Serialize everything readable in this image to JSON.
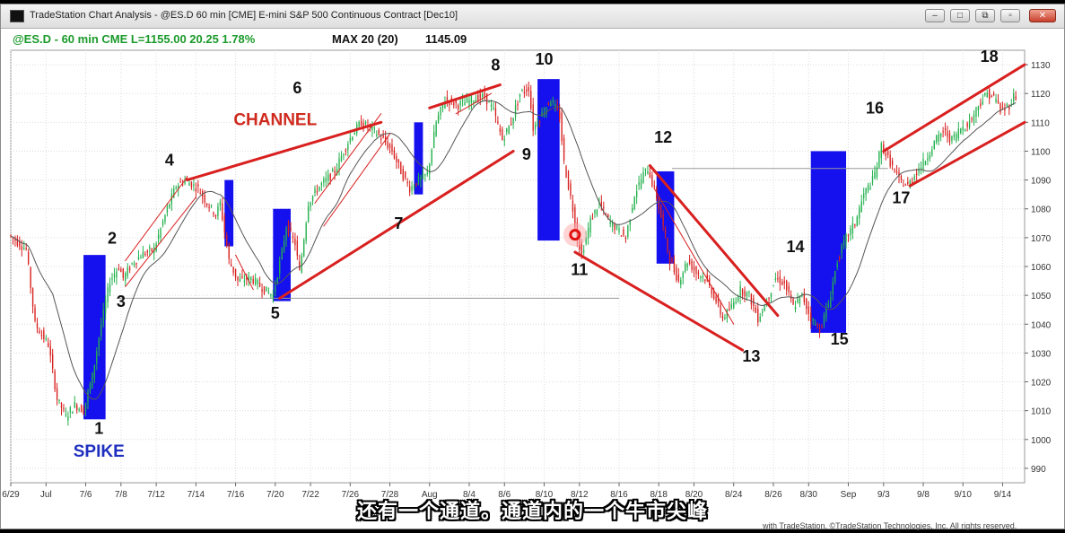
{
  "window": {
    "title": "TradeStation Chart Analysis - @ES.D 60 min [CME] E-mini S&P 500 Continuous Contract [Dec10]"
  },
  "chart_data": {
    "type": "candlestick",
    "header": {
      "symbol_info": "@ES.D - 60 min  CME  L=1155.00  20.25  1.78%",
      "indicator": "MAX 20 (20)",
      "indicator_value": "1145.09"
    },
    "y_axis": {
      "min": 985,
      "max": 1135,
      "ticks": [
        990,
        1000,
        1010,
        1020,
        1030,
        1040,
        1050,
        1060,
        1070,
        1080,
        1090,
        1100,
        1110,
        1120,
        1130
      ]
    },
    "x_axis": {
      "ticks": [
        {
          "label": "6/29",
          "x": 0
        },
        {
          "label": "Jul",
          "x": 8
        },
        {
          "label": "7/6",
          "x": 17
        },
        {
          "label": "7/8",
          "x": 25
        },
        {
          "label": "7/12",
          "x": 33
        },
        {
          "label": "7/14",
          "x": 42
        },
        {
          "label": "7/16",
          "x": 51
        },
        {
          "label": "7/20",
          "x": 60
        },
        {
          "label": "7/22",
          "x": 68
        },
        {
          "label": "7/26",
          "x": 77
        },
        {
          "label": "7/28",
          "x": 86
        },
        {
          "label": "Aug",
          "x": 95
        },
        {
          "label": "8/4",
          "x": 104
        },
        {
          "label": "8/6",
          "x": 112
        },
        {
          "label": "8/10",
          "x": 121
        },
        {
          "label": "8/12",
          "x": 129
        },
        {
          "label": "8/16",
          "x": 138
        },
        {
          "label": "8/18",
          "x": 147
        },
        {
          "label": "8/20",
          "x": 155
        },
        {
          "label": "8/24",
          "x": 164
        },
        {
          "label": "8/26",
          "x": 173
        },
        {
          "label": "8/30",
          "x": 181
        },
        {
          "label": "Sep",
          "x": 190
        },
        {
          "label": "9/3",
          "x": 198
        },
        {
          "label": "9/8",
          "x": 207
        },
        {
          "label": "9/10",
          "x": 216
        },
        {
          "label": "9/14",
          "x": 225
        }
      ]
    },
    "price_path": [
      [
        0,
        1071
      ],
      [
        4,
        1066
      ],
      [
        6,
        1040
      ],
      [
        9,
        1033
      ],
      [
        11,
        1014
      ],
      [
        13,
        1008
      ],
      [
        15,
        1012
      ],
      [
        17,
        1010
      ],
      [
        19,
        1022
      ],
      [
        21,
        1040
      ],
      [
        23,
        1055
      ],
      [
        25,
        1060
      ],
      [
        26,
        1056
      ],
      [
        28,
        1061
      ],
      [
        30,
        1064
      ],
      [
        33,
        1066
      ],
      [
        36,
        1080
      ],
      [
        38,
        1088
      ],
      [
        40,
        1090
      ],
      [
        43,
        1087
      ],
      [
        45,
        1082
      ],
      [
        47,
        1078
      ],
      [
        48,
        1082
      ],
      [
        50,
        1062
      ],
      [
        52,
        1055
      ],
      [
        55,
        1056
      ],
      [
        58,
        1052
      ],
      [
        60,
        1050
      ],
      [
        62,
        1065
      ],
      [
        63,
        1074
      ],
      [
        65,
        1068
      ],
      [
        66,
        1058
      ],
      [
        68,
        1082
      ],
      [
        70,
        1087
      ],
      [
        72,
        1090
      ],
      [
        74,
        1093
      ],
      [
        76,
        1100
      ],
      [
        78,
        1106
      ],
      [
        80,
        1110
      ],
      [
        83,
        1107
      ],
      [
        85,
        1104
      ],
      [
        87,
        1100
      ],
      [
        89,
        1093
      ],
      [
        91,
        1087
      ],
      [
        93,
        1090
      ],
      [
        95,
        1092
      ],
      [
        97,
        1110
      ],
      [
        99,
        1118
      ],
      [
        102,
        1116
      ],
      [
        105,
        1118
      ],
      [
        108,
        1119
      ],
      [
        110,
        1114
      ],
      [
        112,
        1104
      ],
      [
        114,
        1110
      ],
      [
        116,
        1120
      ],
      [
        118,
        1122
      ],
      [
        119,
        1108
      ],
      [
        121,
        1113
      ],
      [
        123,
        1118
      ],
      [
        125,
        1112
      ],
      [
        126,
        1096
      ],
      [
        128,
        1080
      ],
      [
        129,
        1070
      ],
      [
        130,
        1064
      ],
      [
        132,
        1076
      ],
      [
        134,
        1082
      ],
      [
        136,
        1076
      ],
      [
        138,
        1073
      ],
      [
        140,
        1070
      ],
      [
        142,
        1085
      ],
      [
        144,
        1092
      ],
      [
        145,
        1094
      ],
      [
        147,
        1084
      ],
      [
        149,
        1070
      ],
      [
        150,
        1062
      ],
      [
        152,
        1055
      ],
      [
        154,
        1062
      ],
      [
        156,
        1058
      ],
      [
        158,
        1056
      ],
      [
        160,
        1050
      ],
      [
        162,
        1042
      ],
      [
        164,
        1046
      ],
      [
        166,
        1052
      ],
      [
        168,
        1050
      ],
      [
        170,
        1042
      ],
      [
        172,
        1048
      ],
      [
        174,
        1056
      ],
      [
        176,
        1054
      ],
      [
        178,
        1046
      ],
      [
        180,
        1050
      ],
      [
        182,
        1042
      ],
      [
        184,
        1038
      ],
      [
        186,
        1047
      ],
      [
        188,
        1062
      ],
      [
        190,
        1070
      ],
      [
        192,
        1075
      ],
      [
        194,
        1085
      ],
      [
        196,
        1090
      ],
      [
        197,
        1095
      ],
      [
        198,
        1102
      ],
      [
        200,
        1096
      ],
      [
        202,
        1090
      ],
      [
        204,
        1088
      ],
      [
        206,
        1093
      ],
      [
        208,
        1097
      ],
      [
        210,
        1103
      ],
      [
        212,
        1107
      ],
      [
        214,
        1104
      ],
      [
        216,
        1108
      ],
      [
        218,
        1110
      ],
      [
        220,
        1116
      ],
      [
        222,
        1120
      ],
      [
        224,
        1118
      ],
      [
        225,
        1114
      ],
      [
        227,
        1116
      ],
      [
        228,
        1119
      ]
    ],
    "spike_boxes": [
      {
        "x0": 16.5,
        "x1": 21.5,
        "y0": 1007,
        "y1": 1064
      },
      {
        "x0": 48.5,
        "x1": 50.5,
        "y0": 1067,
        "y1": 1090
      },
      {
        "x0": 59.5,
        "x1": 63.5,
        "y0": 1048,
        "y1": 1080
      },
      {
        "x0": 91.5,
        "x1": 93.5,
        "y0": 1085,
        "y1": 1110
      },
      {
        "x0": 119.5,
        "x1": 124.5,
        "y0": 1069,
        "y1": 1125
      },
      {
        "x0": 146.5,
        "x1": 150.5,
        "y0": 1061,
        "y1": 1093
      },
      {
        "x0": 181.5,
        "x1": 189.5,
        "y0": 1037,
        "y1": 1100
      }
    ],
    "trendlines": [
      {
        "x0": 26,
        "y0": 1062,
        "x1": 40,
        "y1": 1091,
        "thin": true
      },
      {
        "x0": 26,
        "y0": 1053,
        "x1": 42,
        "y1": 1084,
        "thin": true
      },
      {
        "x0": 40,
        "y0": 1090,
        "x1": 84,
        "y1": 1110
      },
      {
        "x0": 51,
        "y0": 1064,
        "x1": 55,
        "y1": 1052,
        "thin": true
      },
      {
        "x0": 61,
        "y0": 1049,
        "x1": 114,
        "y1": 1100
      },
      {
        "x0": 69,
        "y0": 1082,
        "x1": 84,
        "y1": 1113,
        "thin": true
      },
      {
        "x0": 71,
        "y0": 1074,
        "x1": 86,
        "y1": 1106,
        "thin": true
      },
      {
        "x0": 95,
        "y0": 1115,
        "x1": 111,
        "y1": 1123
      },
      {
        "x0": 101,
        "y0": 1113,
        "x1": 109,
        "y1": 1120,
        "thin": true
      },
      {
        "x0": 128,
        "y0": 1065,
        "x1": 166,
        "y1": 1031
      },
      {
        "x0": 145,
        "y0": 1095,
        "x1": 174,
        "y1": 1043
      },
      {
        "x0": 146,
        "y0": 1087,
        "x1": 164,
        "y1": 1040,
        "thin": true
      },
      {
        "x0": 198,
        "y0": 1100,
        "x1": 230,
        "y1": 1130
      },
      {
        "x0": 204,
        "y0": 1088,
        "x1": 230,
        "y1": 1110
      }
    ],
    "hlines": [
      {
        "y": 1049,
        "x0": 24,
        "x1": 138
      },
      {
        "y": 1094,
        "x0": 150,
        "x1": 199
      }
    ],
    "annotations": [
      {
        "text": "1",
        "x": 20,
        "y": 1002,
        "size": 18
      },
      {
        "text": "SPIKE",
        "x": 20,
        "y": 994,
        "size": 19,
        "color": "#1f2fbf"
      },
      {
        "text": "2",
        "x": 23,
        "y": 1068,
        "size": 18
      },
      {
        "text": "3",
        "x": 25,
        "y": 1046,
        "size": 18
      },
      {
        "text": "4",
        "x": 36,
        "y": 1095,
        "size": 18
      },
      {
        "text": "5",
        "x": 60,
        "y": 1042,
        "size": 18
      },
      {
        "text": "6",
        "x": 65,
        "y": 1120,
        "size": 18
      },
      {
        "text": "CHANNEL",
        "x": 60,
        "y": 1109,
        "size": 19,
        "color": "#cf2a1e"
      },
      {
        "text": "7",
        "x": 88,
        "y": 1073,
        "size": 18
      },
      {
        "text": "8",
        "x": 110,
        "y": 1128,
        "size": 18
      },
      {
        "text": "9",
        "x": 117,
        "y": 1097,
        "size": 18
      },
      {
        "text": "10",
        "x": 121,
        "y": 1130,
        "size": 18
      },
      {
        "text": "11",
        "x": 129,
        "y": 1057,
        "size": 18
      },
      {
        "text": "12",
        "x": 148,
        "y": 1103,
        "size": 18
      },
      {
        "text": "13",
        "x": 168,
        "y": 1027,
        "size": 18
      },
      {
        "text": "14",
        "x": 178,
        "y": 1065,
        "size": 18
      },
      {
        "text": "15",
        "x": 188,
        "y": 1033,
        "size": 18
      },
      {
        "text": "16",
        "x": 196,
        "y": 1113,
        "size": 18
      },
      {
        "text": "17",
        "x": 202,
        "y": 1082,
        "size": 18
      },
      {
        "text": "18",
        "x": 222,
        "y": 1131,
        "size": 18
      }
    ],
    "marker": {
      "x": 128,
      "y": 1071
    },
    "footer": "with TradeStation. ©TradeStation Technologies, Inc. All rights reserved."
  },
  "subtitle": "还有一个通道。通道内的一个牛市尖峰",
  "colors": {
    "up": "#22b14c",
    "down": "#d8201f",
    "spike": "#1510ee",
    "trend": "#d8201f",
    "label": "#111111",
    "header_green": "#1a9a2a",
    "ma": "#555555"
  }
}
